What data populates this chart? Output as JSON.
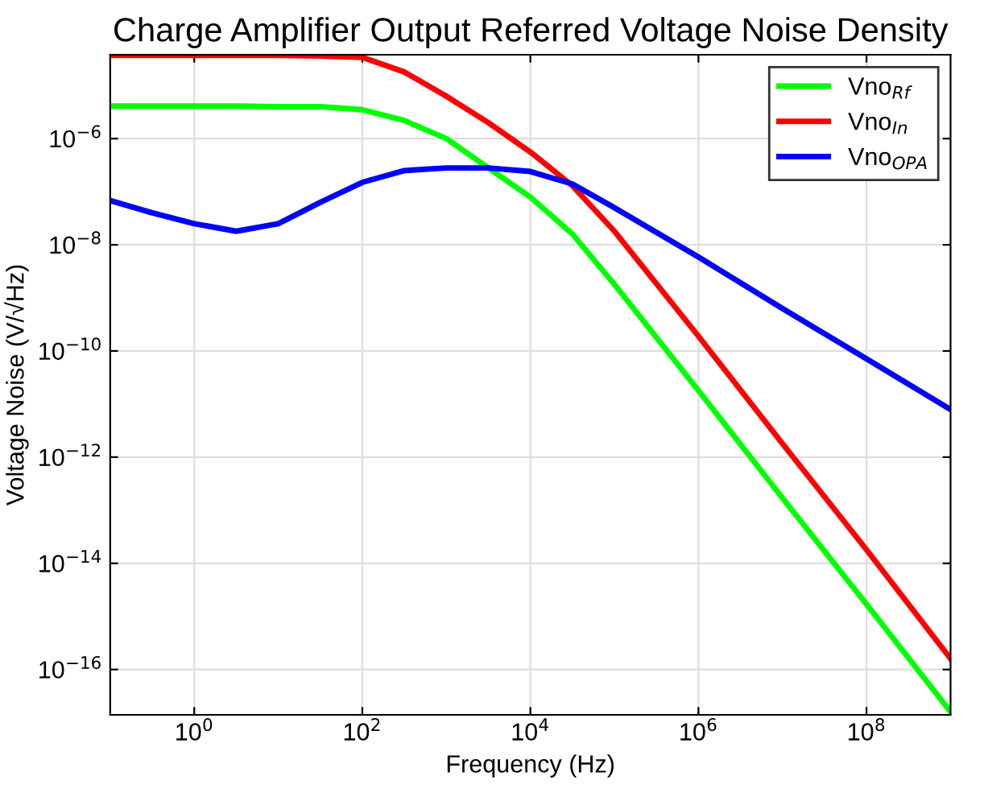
{
  "chart_data": {
    "type": "line",
    "title": "Charge Amplifier Output Referred Voltage Noise Density",
    "xlabel": "Frequency (Hz)",
    "ylabel": "Voltage Noise (V/√Hz)",
    "log": "xy",
    "grid": true,
    "legend": "top right",
    "marker": "none",
    "line_style": "solid",
    "xlim": [
      0.1,
      1000000000
    ],
    "ylim": [
      1.4e-17,
      3.8e-05
    ],
    "xticks": [
      {
        "value": 1,
        "label": "10$^{0}$"
      },
      {
        "value": 100,
        "label": "10$^{2}$"
      },
      {
        "value": 10000,
        "label": "10$^{4}$"
      },
      {
        "value": 1000000,
        "label": "10$^{6}$"
      },
      {
        "value": 100000000,
        "label": "10$^{8}$"
      }
    ],
    "yticks": [
      {
        "value": 1e-16,
        "label": "10$^{−16}$"
      },
      {
        "value": 1e-14,
        "label": "10$^{−14}$"
      },
      {
        "value": 1e-12,
        "label": "10$^{−12}$"
      },
      {
        "value": 1e-10,
        "label": "10$^{−10}$"
      },
      {
        "value": 1e-08,
        "label": "10$^{−8}$"
      },
      {
        "value": 1e-06,
        "label": "10$^{−6}$"
      }
    ],
    "x": [
      0.1,
      0.316,
      1,
      3.16,
      10,
      31.6,
      100,
      316,
      1000,
      3160,
      10000,
      31600,
      100000,
      1000000,
      10000000,
      100000000,
      1000000000
    ],
    "series": [
      {
        "name": "Vno$_{Rf}$",
        "color": "#00ff00",
        "values": [
          4.1e-06,
          4.1e-06,
          4.1e-06,
          4.1e-06,
          4e-06,
          4e-06,
          3.5e-06,
          2.2e-06,
          1e-06,
          2.8e-07,
          7.9e-08,
          1.6e-08,
          1.8e-09,
          1.8e-11,
          1.7e-13,
          1.7e-15,
          1.6e-17
        ]
      },
      {
        "name": "Vno$_{In}$",
        "color": "#ff0000",
        "values": [
          3.7e-05,
          3.7e-05,
          3.7e-05,
          3.7e-05,
          3.7e-05,
          3.6e-05,
          3.4e-05,
          1.8e-05,
          6.3e-06,
          2e-06,
          5.6e-07,
          1.3e-07,
          1.8e-08,
          1.9e-10,
          1.8e-12,
          1.8e-14,
          1.6e-16
        ]
      },
      {
        "name": "Vno$_{OPA}$",
        "color": "#0000ff",
        "values": [
          6.8e-08,
          4e-08,
          2.5e-08,
          1.8e-08,
          2.5e-08,
          6.3e-08,
          1.5e-07,
          2.5e-07,
          2.8e-07,
          2.8e-07,
          2.4e-07,
          1.4e-07,
          5e-08,
          5.9e-09,
          6.3e-10,
          7.1e-11,
          7.9e-12
        ]
      }
    ]
  }
}
